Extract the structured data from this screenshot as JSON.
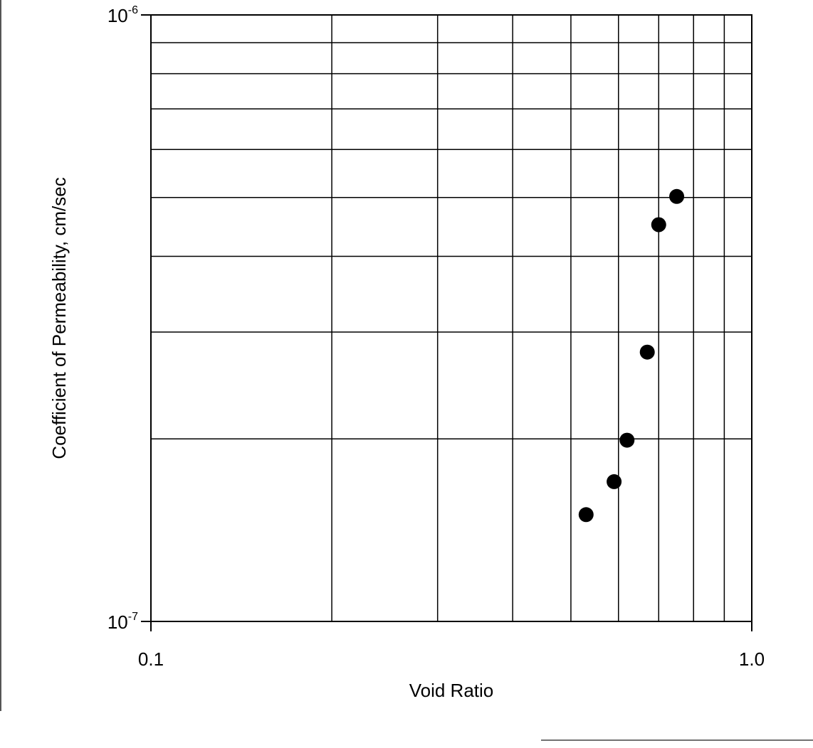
{
  "chart_data": {
    "type": "scatter",
    "title": "",
    "xlabel": "Void Ratio",
    "ylabel": "Coefficient of Permeability, cm/sec",
    "xscale": "log",
    "yscale": "log",
    "xlim": [
      0.1,
      1.0
    ],
    "ylim": [
      1e-07,
      1e-06
    ],
    "grid": true,
    "x_tick_labels": [
      "0.1",
      "1.0"
    ],
    "y_tick_labels": [
      {
        "base": "10",
        "exp": "-7"
      },
      {
        "base": "10",
        "exp": "-6"
      }
    ],
    "marker_color": "#000000",
    "points": [
      {
        "x": 0.53,
        "y": 1.5e-07
      },
      {
        "x": 0.59,
        "y": 1.7e-07
      },
      {
        "x": 0.62,
        "y": 1.99e-07
      },
      {
        "x": 0.67,
        "y": 2.78e-07
      },
      {
        "x": 0.7,
        "y": 4.51e-07
      },
      {
        "x": 0.75,
        "y": 5.02e-07
      }
    ]
  }
}
